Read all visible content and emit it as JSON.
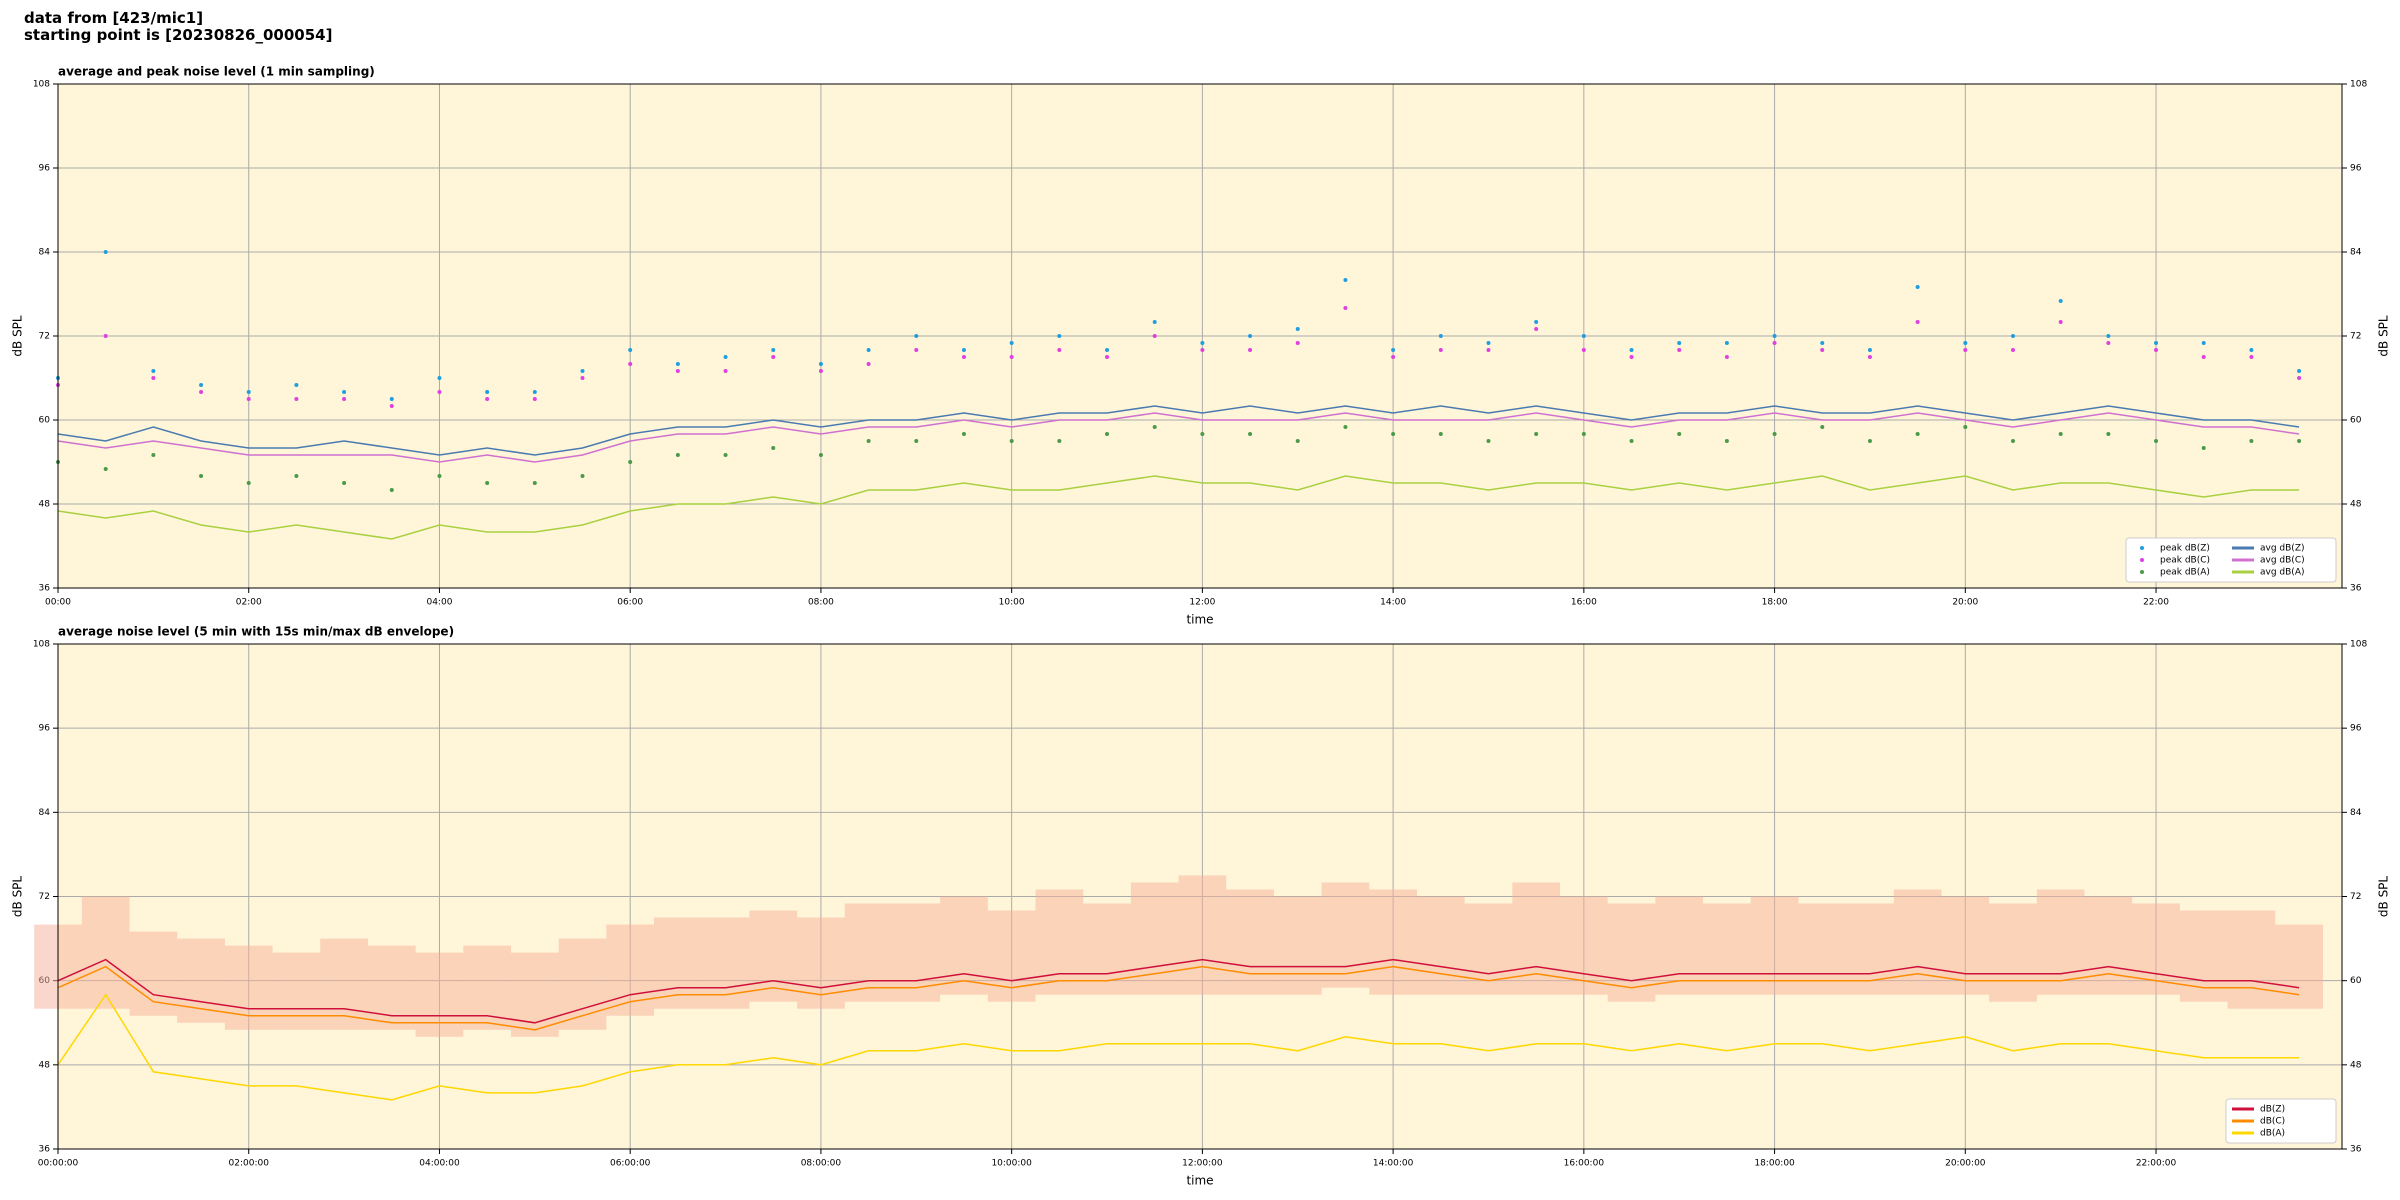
{
  "header": {
    "line1": "data from [423/mic1]",
    "line2": "starting point is [20230826_000054]"
  },
  "chart_data": [
    {
      "type": "line",
      "title": "average and peak noise level (1 min sampling)",
      "xlabel": "time",
      "ylabel": "dB SPL",
      "background": "#fff6d9",
      "grid": true,
      "legend": "lower right",
      "legend_columns": 2,
      "xlim": [
        0,
        1437
      ],
      "ylim": [
        36,
        108
      ],
      "yticks": [
        36,
        48,
        60,
        72,
        84,
        96,
        108
      ],
      "xticks": [
        {
          "value": 0,
          "label": "00:00"
        },
        {
          "value": 120,
          "label": "02:00"
        },
        {
          "value": 240,
          "label": "04:00"
        },
        {
          "value": 360,
          "label": "06:00"
        },
        {
          "value": 480,
          "label": "08:00"
        },
        {
          "value": 600,
          "label": "10:00"
        },
        {
          "value": 720,
          "label": "12:00"
        },
        {
          "value": 840,
          "label": "14:00"
        },
        {
          "value": 960,
          "label": "16:00"
        },
        {
          "value": 1080,
          "label": "18:00"
        },
        {
          "value": 1200,
          "label": "20:00"
        },
        {
          "value": 1320,
          "label": "22:00"
        }
      ],
      "x": [
        0,
        30,
        60,
        90,
        120,
        150,
        180,
        210,
        240,
        270,
        300,
        330,
        360,
        390,
        420,
        450,
        480,
        510,
        540,
        570,
        600,
        630,
        660,
        690,
        720,
        750,
        780,
        810,
        840,
        870,
        900,
        930,
        960,
        990,
        1020,
        1050,
        1080,
        1110,
        1140,
        1170,
        1200,
        1230,
        1260,
        1290,
        1320,
        1350,
        1380,
        1410
      ],
      "series": [
        {
          "name": "peak dB(Z)",
          "kind": "scatter",
          "color": "#1f9fe0",
          "values": [
            66,
            84,
            67,
            65,
            64,
            65,
            64,
            63,
            66,
            64,
            64,
            67,
            70,
            68,
            69,
            70,
            68,
            70,
            72,
            70,
            71,
            72,
            70,
            74,
            71,
            72,
            73,
            80,
            70,
            72,
            71,
            74,
            72,
            70,
            71,
            71,
            72,
            71,
            70,
            79,
            71,
            72,
            77,
            72,
            71,
            71,
            70,
            67
          ]
        },
        {
          "name": "peak dB(C)",
          "kind": "scatter",
          "color": "#e040e0",
          "values": [
            65,
            72,
            66,
            64,
            63,
            63,
            63,
            62,
            64,
            63,
            63,
            66,
            68,
            67,
            67,
            69,
            67,
            68,
            70,
            69,
            69,
            70,
            69,
            72,
            70,
            70,
            71,
            76,
            69,
            70,
            70,
            73,
            70,
            69,
            70,
            69,
            71,
            70,
            69,
            74,
            70,
            70,
            74,
            71,
            70,
            69,
            69,
            66
          ]
        },
        {
          "name": "peak dB(A)",
          "kind": "scatter",
          "color": "#4a9a4a",
          "values": [
            54,
            53,
            55,
            52,
            51,
            52,
            51,
            50,
            52,
            51,
            51,
            52,
            54,
            55,
            55,
            56,
            55,
            57,
            57,
            58,
            57,
            57,
            58,
            59,
            58,
            58,
            57,
            59,
            58,
            58,
            57,
            58,
            58,
            57,
            58,
            57,
            58,
            59,
            57,
            58,
            59,
            57,
            58,
            58,
            57,
            56,
            57,
            57
          ]
        },
        {
          "name": "avg dB(Z)",
          "kind": "line",
          "color": "#4a7ab0",
          "values": [
            58,
            57,
            59,
            57,
            56,
            56,
            57,
            56,
            55,
            56,
            55,
            56,
            58,
            59,
            59,
            60,
            59,
            60,
            60,
            61,
            60,
            61,
            61,
            62,
            61,
            62,
            61,
            62,
            61,
            62,
            61,
            62,
            61,
            60,
            61,
            61,
            62,
            61,
            61,
            62,
            61,
            60,
            61,
            62,
            61,
            60,
            60,
            59
          ]
        },
        {
          "name": "avg dB(C)",
          "kind": "line",
          "color": "#d070d0",
          "values": [
            57,
            56,
            57,
            56,
            55,
            55,
            55,
            55,
            54,
            55,
            54,
            55,
            57,
            58,
            58,
            59,
            58,
            59,
            59,
            60,
            59,
            60,
            60,
            61,
            60,
            60,
            60,
            61,
            60,
            60,
            60,
            61,
            60,
            59,
            60,
            60,
            61,
            60,
            60,
            61,
            60,
            59,
            60,
            61,
            60,
            59,
            59,
            58
          ]
        },
        {
          "name": "avg dB(A)",
          "kind": "line",
          "color": "#a8d040",
          "values": [
            47,
            46,
            47,
            45,
            44,
            45,
            44,
            43,
            45,
            44,
            44,
            45,
            47,
            48,
            48,
            49,
            48,
            50,
            50,
            51,
            50,
            50,
            51,
            52,
            51,
            51,
            50,
            52,
            51,
            51,
            50,
            51,
            51,
            50,
            51,
            50,
            51,
            52,
            50,
            51,
            52,
            50,
            51,
            51,
            50,
            49,
            50,
            50
          ]
        }
      ]
    },
    {
      "type": "line",
      "title": "average noise level (5 min with 15s min/max dB envelope)",
      "xlabel": "time",
      "ylabel": "dB SPL",
      "background": "#fff6d9",
      "grid": true,
      "legend": "lower right",
      "legend_columns": 1,
      "xlim": [
        0,
        1437
      ],
      "ylim": [
        36,
        108
      ],
      "yticks": [
        36,
        48,
        60,
        72,
        84,
        96,
        108
      ],
      "xticks": [
        {
          "value": 0,
          "label": "00:00:00"
        },
        {
          "value": 120,
          "label": "02:00:00"
        },
        {
          "value": 240,
          "label": "04:00:00"
        },
        {
          "value": 360,
          "label": "06:00:00"
        },
        {
          "value": 480,
          "label": "08:00:00"
        },
        {
          "value": 600,
          "label": "10:00:00"
        },
        {
          "value": 720,
          "label": "12:00:00"
        },
        {
          "value": 840,
          "label": "14:00:00"
        },
        {
          "value": 960,
          "label": "16:00:00"
        },
        {
          "value": 1080,
          "label": "18:00:00"
        },
        {
          "value": 1200,
          "label": "20:00:00"
        },
        {
          "value": 1320,
          "label": "22:00:00"
        }
      ],
      "x": [
        0,
        30,
        60,
        90,
        120,
        150,
        180,
        210,
        240,
        270,
        300,
        330,
        360,
        390,
        420,
        450,
        480,
        510,
        540,
        570,
        600,
        630,
        660,
        690,
        720,
        750,
        780,
        810,
        840,
        870,
        900,
        930,
        960,
        990,
        1020,
        1050,
        1080,
        1110,
        1140,
        1170,
        1200,
        1230,
        1260,
        1290,
        1320,
        1350,
        1380,
        1410
      ],
      "envelope": {
        "color": "#f5b09a",
        "max": [
          68,
          72,
          67,
          66,
          65,
          64,
          66,
          65,
          64,
          65,
          64,
          66,
          68,
          69,
          69,
          70,
          69,
          71,
          71,
          72,
          70,
          73,
          71,
          74,
          75,
          73,
          72,
          74,
          73,
          72,
          71,
          74,
          72,
          71,
          72,
          71,
          72,
          71,
          71,
          73,
          72,
          71,
          73,
          72,
          71,
          70,
          70,
          68
        ],
        "min": [
          56,
          56,
          55,
          54,
          53,
          53,
          53,
          53,
          52,
          53,
          52,
          53,
          55,
          56,
          56,
          57,
          56,
          57,
          57,
          58,
          57,
          58,
          58,
          58,
          58,
          58,
          58,
          59,
          58,
          58,
          58,
          58,
          58,
          57,
          58,
          58,
          58,
          58,
          58,
          58,
          58,
          57,
          58,
          58,
          58,
          57,
          56,
          56
        ]
      },
      "series": [
        {
          "name": "dB(Z)",
          "kind": "line",
          "color": "#d0103a",
          "values": [
            60,
            63,
            58,
            57,
            56,
            56,
            56,
            55,
            55,
            55,
            54,
            56,
            58,
            59,
            59,
            60,
            59,
            60,
            60,
            61,
            60,
            61,
            61,
            62,
            63,
            62,
            62,
            62,
            63,
            62,
            61,
            62,
            61,
            60,
            61,
            61,
            61,
            61,
            61,
            62,
            61,
            61,
            61,
            62,
            61,
            60,
            60,
            59
          ]
        },
        {
          "name": "dB(C)",
          "kind": "line",
          "color": "#ff8c00",
          "values": [
            59,
            62,
            57,
            56,
            55,
            55,
            55,
            54,
            54,
            54,
            53,
            55,
            57,
            58,
            58,
            59,
            58,
            59,
            59,
            60,
            59,
            60,
            60,
            61,
            62,
            61,
            61,
            61,
            62,
            61,
            60,
            61,
            60,
            59,
            60,
            60,
            60,
            60,
            60,
            61,
            60,
            60,
            60,
            61,
            60,
            59,
            59,
            58
          ]
        },
        {
          "name": "dB(A)",
          "kind": "line",
          "color": "#ffd700",
          "values": [
            48,
            58,
            47,
            46,
            45,
            45,
            44,
            43,
            45,
            44,
            44,
            45,
            47,
            48,
            48,
            49,
            48,
            50,
            50,
            51,
            50,
            50,
            51,
            51,
            51,
            51,
            50,
            52,
            51,
            51,
            50,
            51,
            51,
            50,
            51,
            50,
            51,
            51,
            50,
            51,
            52,
            50,
            51,
            51,
            50,
            49,
            49,
            49
          ]
        }
      ]
    }
  ]
}
